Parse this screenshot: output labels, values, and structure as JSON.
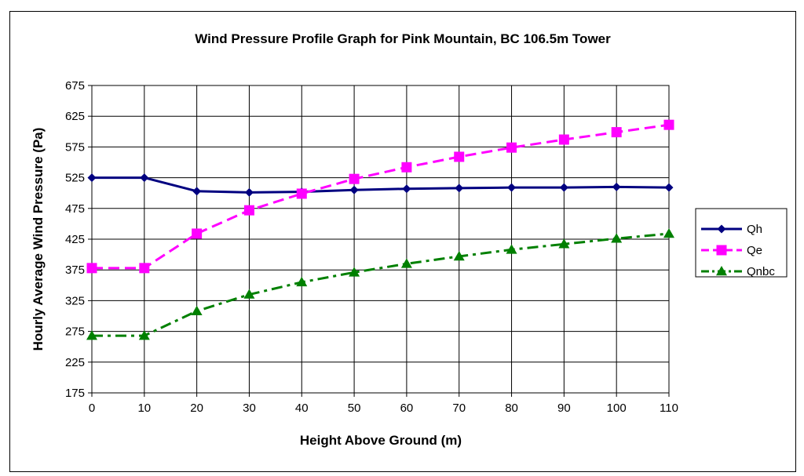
{
  "chart_data": {
    "type": "line",
    "title": "Wind Pressure Profile Graph for  Pink Mountain, BC  106.5m Tower",
    "xlabel": "Height Above Ground (m)",
    "ylabel": "Hourly Average Wind Pressure (Pa)",
    "x": [
      0,
      10,
      20,
      30,
      40,
      50,
      60,
      70,
      80,
      90,
      100,
      110
    ],
    "xlim": [
      0,
      110
    ],
    "ylim": [
      175,
      675
    ],
    "xticks": [
      0,
      10,
      20,
      30,
      40,
      50,
      60,
      70,
      80,
      90,
      100,
      110
    ],
    "yticks": [
      175,
      225,
      275,
      325,
      375,
      425,
      475,
      525,
      575,
      625,
      675
    ],
    "grid": true,
    "legend_position": "right",
    "series": [
      {
        "name": "Qh",
        "color": "#000080",
        "marker": "diamond",
        "dash": "solid",
        "values": [
          525,
          525,
          503,
          501,
          502,
          505,
          507,
          508,
          509,
          509,
          510,
          509
        ]
      },
      {
        "name": "Qe",
        "color": "#ff00ff",
        "marker": "square",
        "dash": "dashed",
        "values": [
          378,
          378,
          434,
          472,
          499,
          523,
          542,
          559,
          574,
          587,
          599,
          611
        ]
      },
      {
        "name": "Qnbc",
        "color": "#008000",
        "marker": "triangle",
        "dash": "dashdot",
        "values": [
          268,
          268,
          308,
          335,
          355,
          371,
          385,
          397,
          408,
          417,
          426,
          434
        ]
      }
    ]
  }
}
